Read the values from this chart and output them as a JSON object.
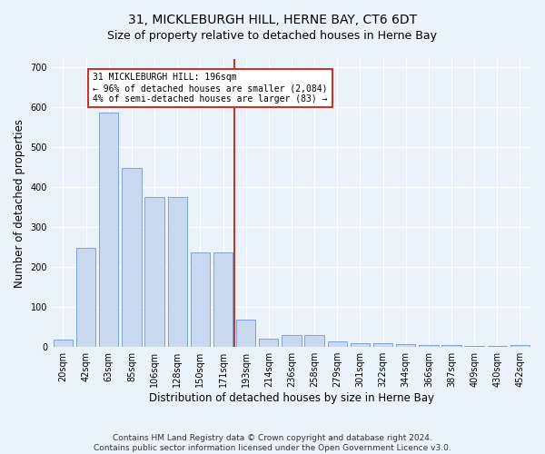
{
  "title": "31, MICKLEBURGH HILL, HERNE BAY, CT6 6DT",
  "subtitle": "Size of property relative to detached houses in Herne Bay",
  "xlabel": "Distribution of detached houses by size in Herne Bay",
  "ylabel": "Number of detached properties",
  "categories": [
    "20sqm",
    "42sqm",
    "63sqm",
    "85sqm",
    "106sqm",
    "128sqm",
    "150sqm",
    "171sqm",
    "193sqm",
    "214sqm",
    "236sqm",
    "258sqm",
    "279sqm",
    "301sqm",
    "322sqm",
    "344sqm",
    "366sqm",
    "387sqm",
    "409sqm",
    "430sqm",
    "452sqm"
  ],
  "values": [
    18,
    248,
    585,
    448,
    375,
    375,
    237,
    237,
    68,
    20,
    30,
    30,
    13,
    10,
    9,
    8,
    6,
    4,
    3,
    2,
    5
  ],
  "bar_color": "#c9d9f0",
  "bar_edge_color": "#5a8ac6",
  "vline_color": "#c0392b",
  "annotation_text": "31 MICKLEBURGH HILL: 196sqm\n← 96% of detached houses are smaller (2,084)\n4% of semi-detached houses are larger (83) →",
  "annotation_box_color": "white",
  "annotation_box_edge": "#c0392b",
  "ylim": [
    0,
    720
  ],
  "yticks": [
    0,
    100,
    200,
    300,
    400,
    500,
    600,
    700
  ],
  "footer": "Contains HM Land Registry data © Crown copyright and database right 2024.\nContains public sector information licensed under the Open Government Licence v3.0.",
  "title_fontsize": 10,
  "xlabel_fontsize": 8.5,
  "ylabel_fontsize": 8.5,
  "tick_fontsize": 7,
  "footer_fontsize": 6.5,
  "background_color": "#eaf2fb",
  "plot_background_color": "#eaf2fb"
}
